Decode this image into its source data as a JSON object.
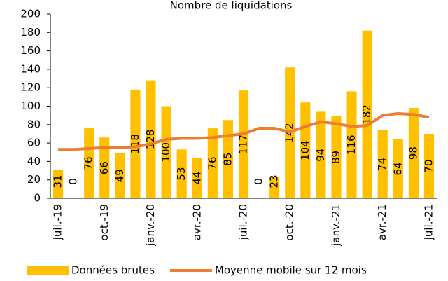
{
  "chart_data": {
    "type": "bar",
    "title": "Nombre de liquidations",
    "categories": [
      "juil.-19",
      null,
      null,
      "oct.-19",
      null,
      null,
      "janv.-20",
      null,
      null,
      "avr.-20",
      null,
      null,
      "juil.-20",
      null,
      null,
      "oct.-20",
      null,
      null,
      "janv.-21",
      null,
      null,
      "avr.-21",
      null,
      null,
      "juil.-21"
    ],
    "series": [
      {
        "name": "Données brutes",
        "type": "bar",
        "color": "#FFC000",
        "values": [
          31,
          0,
          76,
          66,
          49,
          118,
          128,
          100,
          53,
          44,
          76,
          85,
          117,
          0,
          23,
          142,
          104,
          94,
          89,
          116,
          182,
          74,
          64,
          98,
          70
        ]
      },
      {
        "name": "Moyenne mobile sur 12 mois",
        "type": "line",
        "color": "#ED7D31",
        "values": [
          53,
          53,
          54,
          55,
          55,
          56,
          59,
          64,
          65,
          65,
          66,
          68,
          70,
          76,
          76,
          72,
          78,
          83,
          81,
          78,
          79,
          90,
          92,
          91,
          88
        ]
      }
    ],
    "ylim": [
      0,
      200
    ],
    "yticks": [
      0,
      20,
      40,
      60,
      80,
      100,
      120,
      140,
      160,
      180,
      200
    ],
    "grid": false
  }
}
